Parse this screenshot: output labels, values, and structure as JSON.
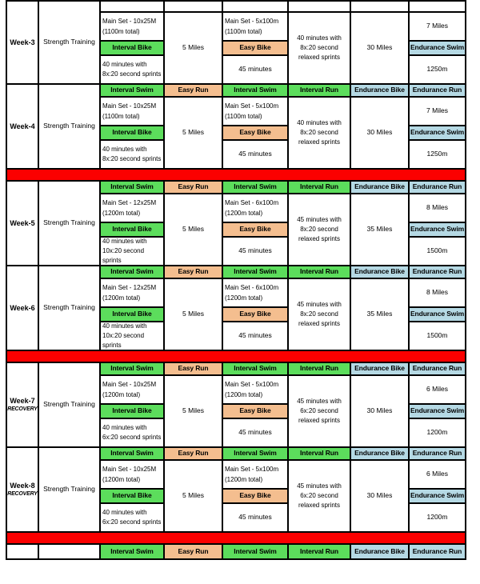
{
  "document_title": "Weekly Training Schedule Table",
  "colors": {
    "green": "#5CDD5C",
    "peach": "#F4BE8F",
    "blue": "#B5D9E4",
    "red": "#FB0000",
    "border": "#000000"
  },
  "column_headers": [
    "Interval Swim",
    "Easy Run",
    "Interval Swim",
    "Interval Run",
    "Endurance Bike",
    "Endurance Run"
  ],
  "sub_headers": {
    "interval_bike": "Interval Bike",
    "easy_bike": "Easy Bike",
    "endurance_swim": "Endurance Swim"
  },
  "weeks": [
    {
      "label": "Week-3",
      "recovery": "",
      "strength": "Strength Training",
      "swim_main1": "Main Set - 10x25M",
      "swim_main2": "(1100m total)",
      "bike_detail": "40 minutes with 8x:20 second sprints",
      "run_total": "5 Miles",
      "swim2_main1": "Main Set - 5x100m",
      "swim2_main2": "(1100m total)",
      "easy_bike_total": "45 minutes",
      "interval_run_detail": "40 minutes with 8x:20 second relaxed sprints",
      "endurance_bike_total": "30 Miles",
      "endurance_run_total": "7 Miles",
      "endurance_swim_total": "1250m"
    },
    {
      "label": "Week-4",
      "recovery": "",
      "strength": "Strength Training",
      "swim_main1": "Main Set - 10x25M",
      "swim_main2": "(1100m total)",
      "bike_detail": "40 minutes with 8x:20 second sprints",
      "run_total": "5 Miles",
      "swim2_main1": "Main Set - 5x100m",
      "swim2_main2": "(1100m total)",
      "easy_bike_total": "45 minutes",
      "interval_run_detail": "40 minutes with 8x:20 second relaxed sprints",
      "endurance_bike_total": "30 Miles",
      "endurance_run_total": "7 Miles",
      "endurance_swim_total": "1250m"
    },
    {
      "label": "Week-5",
      "recovery": "",
      "strength": "Strength Training",
      "swim_main1": "Main Set - 12x25M",
      "swim_main2": "(1200m total)",
      "bike_detail": "40 minutes with 10x:20 second sprints",
      "run_total": "5 Miles",
      "swim2_main1": "Main Set - 6x100m",
      "swim2_main2": "(1200m total)",
      "easy_bike_total": "45 minutes",
      "interval_run_detail": "45 minutes with 8x:20 second relaxed sprints",
      "endurance_bike_total": "35 Miles",
      "endurance_run_total": "8 Miles",
      "endurance_swim_total": "1500m"
    },
    {
      "label": "Week-6",
      "recovery": "",
      "strength": "Strength Training",
      "swim_main1": "Main Set - 12x25M",
      "swim_main2": "(1200m total)",
      "bike_detail": "40 minutes with 10x:20 second sprints",
      "run_total": "5 Miles",
      "swim2_main1": "Main Set - 6x100m",
      "swim2_main2": "(1200m total)",
      "easy_bike_total": "45 minutes",
      "interval_run_detail": "45 minutes with 8x:20 second relaxed sprints",
      "endurance_bike_total": "35 Miles",
      "endurance_run_total": "8 Miles",
      "endurance_swim_total": "1500m"
    },
    {
      "label": "Week-7",
      "recovery": "RECOVERY",
      "strength": "Strength Training",
      "swim_main1": "Main Set - 10x25M",
      "swim_main2": "(1200m total)",
      "bike_detail": "40 minutes with 6x:20 second sprints",
      "run_total": "5 Miles",
      "swim2_main1": "Main Set - 5x100m",
      "swim2_main2": "(1200m total)",
      "easy_bike_total": "45 minutes",
      "interval_run_detail": "45 minutes with 6x:20 second relaxed sprints",
      "endurance_bike_total": "30 Miles",
      "endurance_run_total": "6 Miles",
      "endurance_swim_total": "1200m"
    },
    {
      "label": "Week-8",
      "recovery": "RECOVERY",
      "strength": "Strength Training",
      "swim_main1": "Main Set - 10x25M",
      "swim_main2": "(1200m total)",
      "bike_detail": "40 minutes with 6x:20 second sprints",
      "run_total": "5 Miles",
      "swim2_main1": "Main Set - 5x100m",
      "swim2_main2": "(1200m total)",
      "easy_bike_total": "45 minutes",
      "interval_run_detail": "45 minutes with 6x:20 second relaxed sprints",
      "endurance_bike_total": "30 Miles",
      "endurance_run_total": "6 Miles",
      "endurance_swim_total": "1200m"
    }
  ]
}
